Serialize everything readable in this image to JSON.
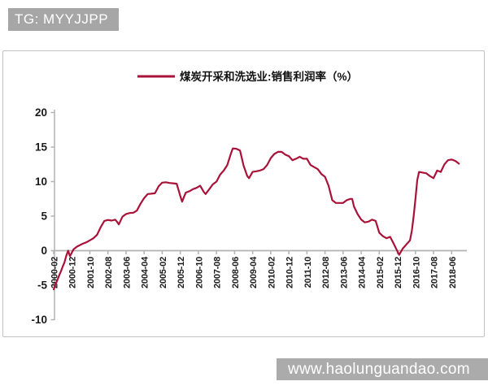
{
  "banner": {
    "text": "TG: MYYJJPP",
    "bg": "#a6a6a6"
  },
  "watermark": {
    "text": "www.haolunguandao.com",
    "bg": "#ababab"
  },
  "chart_data": {
    "type": "line",
    "title": "",
    "legend": "煤炭开采和洗选业:销售利润率（%）",
    "legend_position": "top",
    "grid": false,
    "line_color": "#a91238",
    "axis_color": "#b2b2b2",
    "tick_label_color": "#1a1a1a",
    "ylim": [
      -10,
      20
    ],
    "y_ticks": [
      20,
      15,
      10,
      5,
      0,
      -5,
      -10
    ],
    "x_tick_labels": [
      "2000-02",
      "2000-12",
      "2001-10",
      "2002-08",
      "2003-06",
      "2004-04",
      "2005-02",
      "2005-12",
      "2006-10",
      "2007-08",
      "2008-06",
      "2009-04",
      "2010-02",
      "2010-12",
      "2011-10",
      "2012-08",
      "2013-06",
      "2014-04",
      "2015-02",
      "2015-12",
      "2016-10",
      "2017-08",
      "2018-06"
    ],
    "series": [
      {
        "name": "煤炭开采和洗选业:销售利润率（%）",
        "points": [
          [
            "2000-02",
            -5.6
          ],
          [
            "2000-03",
            -4.9
          ],
          [
            "2000-04",
            -4.3
          ],
          [
            "2000-05",
            -3.6
          ],
          [
            "2000-06",
            -3.0
          ],
          [
            "2000-07",
            -2.3
          ],
          [
            "2000-08",
            -1.7
          ],
          [
            "2000-09",
            -0.7
          ],
          [
            "2000-10",
            0.0
          ],
          [
            "2000-11",
            -0.8
          ],
          [
            "2000-12",
            -0.3
          ],
          [
            "2001-01",
            0.2
          ],
          [
            "2001-03",
            0.6
          ],
          [
            "2001-06",
            1.0
          ],
          [
            "2001-08",
            1.2
          ],
          [
            "2001-10",
            1.5
          ],
          [
            "2001-12",
            1.8
          ],
          [
            "2002-02",
            2.3
          ],
          [
            "2002-04",
            3.4
          ],
          [
            "2002-06",
            4.3
          ],
          [
            "2002-08",
            4.45
          ],
          [
            "2002-10",
            4.35
          ],
          [
            "2002-12",
            4.5
          ],
          [
            "2003-01",
            4.2
          ],
          [
            "2003-02",
            3.8
          ],
          [
            "2003-04",
            4.9
          ],
          [
            "2003-06",
            5.3
          ],
          [
            "2003-08",
            5.45
          ],
          [
            "2003-10",
            5.5
          ],
          [
            "2003-12",
            5.8
          ],
          [
            "2004-02",
            6.8
          ],
          [
            "2004-04",
            7.6
          ],
          [
            "2004-06",
            8.2
          ],
          [
            "2004-08",
            8.25
          ],
          [
            "2004-10",
            8.3
          ],
          [
            "2004-12",
            9.3
          ],
          [
            "2005-02",
            9.85
          ],
          [
            "2005-04",
            9.9
          ],
          [
            "2005-06",
            9.8
          ],
          [
            "2005-08",
            9.75
          ],
          [
            "2005-10",
            9.7
          ],
          [
            "2005-12",
            7.9
          ],
          [
            "2006-01",
            7.1
          ],
          [
            "2006-03",
            8.4
          ],
          [
            "2006-05",
            8.6
          ],
          [
            "2006-07",
            8.9
          ],
          [
            "2006-09",
            9.1
          ],
          [
            "2006-11",
            9.4
          ],
          [
            "2007-01",
            8.5
          ],
          [
            "2007-02",
            8.2
          ],
          [
            "2007-04",
            8.9
          ],
          [
            "2007-06",
            9.6
          ],
          [
            "2007-08",
            10.0
          ],
          [
            "2007-10",
            11.0
          ],
          [
            "2007-12",
            11.6
          ],
          [
            "2008-02",
            12.4
          ],
          [
            "2008-04",
            14.1
          ],
          [
            "2008-05",
            14.8
          ],
          [
            "2008-07",
            14.75
          ],
          [
            "2008-09",
            14.5
          ],
          [
            "2008-11",
            12.3
          ],
          [
            "2009-01",
            10.8
          ],
          [
            "2009-02",
            10.5
          ],
          [
            "2009-04",
            11.4
          ],
          [
            "2009-06",
            11.5
          ],
          [
            "2009-08",
            11.6
          ],
          [
            "2009-10",
            11.8
          ],
          [
            "2009-12",
            12.4
          ],
          [
            "2010-02",
            13.4
          ],
          [
            "2010-04",
            14.0
          ],
          [
            "2010-06",
            14.3
          ],
          [
            "2010-08",
            14.3
          ],
          [
            "2010-10",
            13.9
          ],
          [
            "2010-12",
            13.7
          ],
          [
            "2011-02",
            13.1
          ],
          [
            "2011-04",
            13.3
          ],
          [
            "2011-06",
            13.6
          ],
          [
            "2011-08",
            13.3
          ],
          [
            "2011-10",
            13.3
          ],
          [
            "2011-12",
            12.4
          ],
          [
            "2012-02",
            12.1
          ],
          [
            "2012-04",
            11.8
          ],
          [
            "2012-06",
            11.1
          ],
          [
            "2012-08",
            10.7
          ],
          [
            "2012-10",
            9.4
          ],
          [
            "2012-12",
            7.3
          ],
          [
            "2013-02",
            6.9
          ],
          [
            "2013-04",
            6.9
          ],
          [
            "2013-06",
            6.9
          ],
          [
            "2013-08",
            7.3
          ],
          [
            "2013-10",
            7.5
          ],
          [
            "2013-11",
            7.5
          ],
          [
            "2013-12",
            6.4
          ],
          [
            "2014-02",
            5.3
          ],
          [
            "2014-04",
            4.5
          ],
          [
            "2014-06",
            4.1
          ],
          [
            "2014-08",
            4.2
          ],
          [
            "2014-10",
            4.5
          ],
          [
            "2014-12",
            4.3
          ],
          [
            "2015-02",
            2.6
          ],
          [
            "2015-04",
            2.1
          ],
          [
            "2015-06",
            1.8
          ],
          [
            "2015-08",
            2.0
          ],
          [
            "2015-10",
            1.0
          ],
          [
            "2015-12",
            -0.1
          ],
          [
            "2016-01",
            -0.6
          ],
          [
            "2016-03",
            0.3
          ],
          [
            "2016-05",
            0.9
          ],
          [
            "2016-07",
            1.5
          ],
          [
            "2016-08",
            2.9
          ],
          [
            "2016-09",
            5.0
          ],
          [
            "2016-10",
            7.5
          ],
          [
            "2016-11",
            10.2
          ],
          [
            "2016-12",
            11.4
          ],
          [
            "2017-02",
            11.3
          ],
          [
            "2017-04",
            11.2
          ],
          [
            "2017-06",
            10.8
          ],
          [
            "2017-08",
            10.5
          ],
          [
            "2017-10",
            11.6
          ],
          [
            "2017-12",
            11.4
          ],
          [
            "2018-02",
            12.5
          ],
          [
            "2018-04",
            13.1
          ],
          [
            "2018-06",
            13.2
          ],
          [
            "2018-08",
            13.0
          ],
          [
            "2018-10",
            12.6
          ]
        ]
      }
    ]
  }
}
